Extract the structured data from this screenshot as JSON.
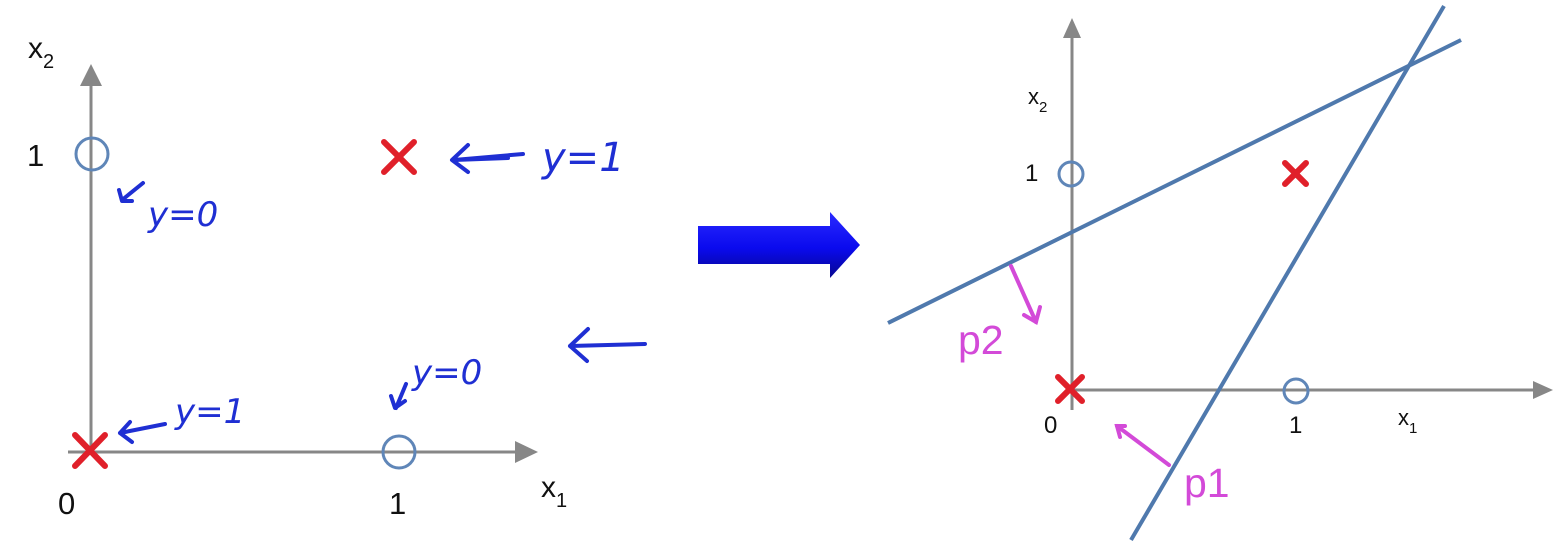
{
  "left_panel": {
    "axis_x_label": "x",
    "axis_x_sub": "1",
    "axis_y_label": "x",
    "axis_y_sub": "2",
    "tick_x_0": "0",
    "tick_x_1": "1",
    "tick_y_1": "1",
    "annotations": {
      "top_left": "y=0",
      "origin": "y=1",
      "right_bottom": "y=0",
      "top_right": "y=1"
    }
  },
  "right_panel": {
    "axis_x_label": "x",
    "axis_x_sub": "1",
    "axis_y_label": "x",
    "axis_y_sub": "2",
    "tick_x_0": "0",
    "tick_x_1": "1",
    "tick_y_1": "1",
    "p1_label": "p1",
    "p2_label": "p2"
  },
  "colors": {
    "axis": "#878787",
    "handwriting": "#1f2fd3",
    "circle": "#5f86b8",
    "cross": "#e0202a",
    "boundary": "#4f79ad",
    "pink": "#d34ad8",
    "arrow": "#1010ff"
  }
}
